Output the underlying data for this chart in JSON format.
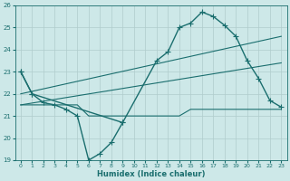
{
  "xlabel": "Humidex (Indice chaleur)",
  "xlim": [
    -0.5,
    23.5
  ],
  "ylim": [
    19,
    26
  ],
  "yticks": [
    19,
    20,
    21,
    22,
    23,
    24,
    25,
    26
  ],
  "xticks": [
    0,
    1,
    2,
    3,
    4,
    5,
    6,
    7,
    8,
    9,
    10,
    11,
    12,
    13,
    14,
    15,
    16,
    17,
    18,
    19,
    20,
    21,
    22,
    23
  ],
  "bg_color": "#cde8e8",
  "line_color": "#1a6e6e",
  "grid_color": "#b0cccc",
  "curves": {
    "daily_main": {
      "x": [
        0,
        1,
        2,
        3,
        4,
        5,
        6,
        7,
        8,
        9,
        10,
        11,
        12,
        13,
        14,
        15,
        16,
        17,
        18,
        19,
        20,
        21,
        22,
        23
      ],
      "y": [
        23,
        22,
        21.6,
        21.5,
        21.3,
        21.0,
        19.0,
        19.3,
        19.8,
        20.7,
        null,
        null,
        null,
        null,
        null,
        null,
        null,
        null,
        null,
        null,
        null,
        null,
        null,
        null
      ]
    },
    "daily_afternoon": {
      "x": [
        0,
        1,
        9,
        11,
        12,
        13,
        14,
        15,
        16,
        17,
        18,
        19,
        20,
        21,
        22,
        23
      ],
      "y": [
        23,
        22,
        20.7,
        null,
        23.5,
        23.9,
        25.0,
        25.2,
        25.7,
        25.5,
        25.1,
        24.6,
        23.5,
        22.7,
        21.7,
        21.4
      ]
    },
    "upper_trend": {
      "x": [
        0,
        23
      ],
      "y": [
        22.0,
        24.6
      ]
    },
    "lower_trend": {
      "x": [
        0,
        23
      ],
      "y": [
        21.5,
        23.4
      ]
    },
    "min_flat": {
      "x": [
        0,
        5,
        6,
        9,
        10,
        14,
        15,
        19,
        20,
        23
      ],
      "y": [
        21.5,
        21.5,
        21.0,
        21.0,
        21.0,
        21.0,
        21.3,
        21.3,
        21.3,
        21.3
      ]
    }
  }
}
